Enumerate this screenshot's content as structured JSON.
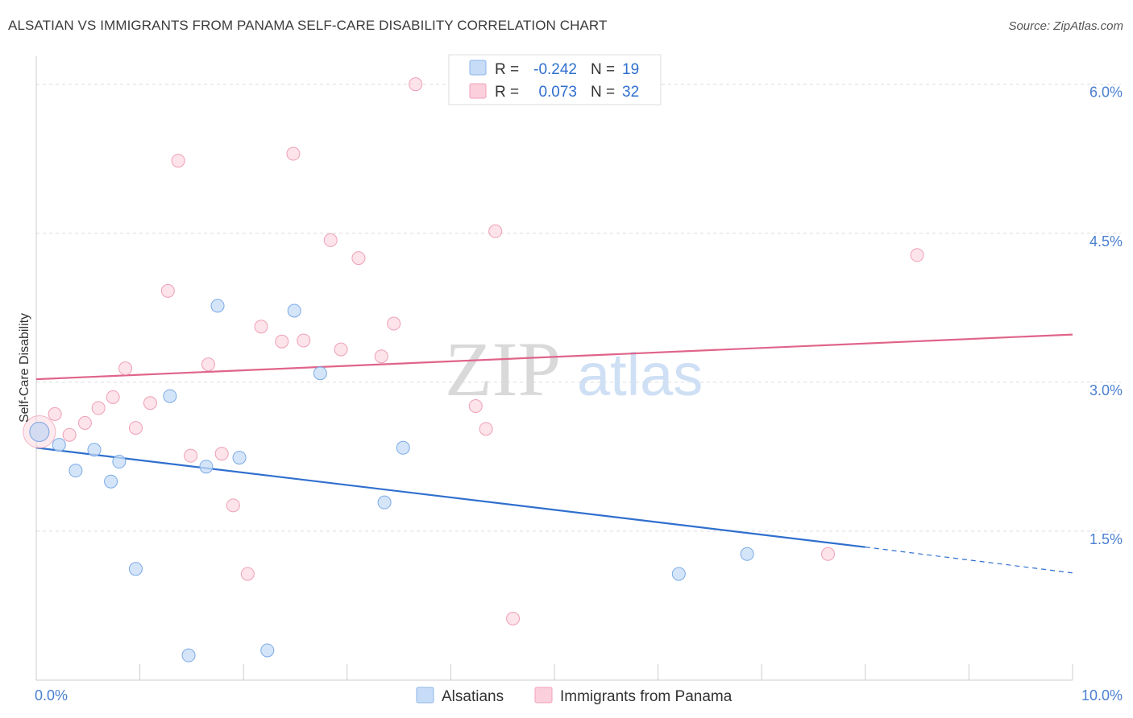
{
  "header": {
    "title": "ALSATIAN VS IMMIGRANTS FROM PANAMA SELF-CARE DISABILITY CORRELATION CHART",
    "source": "Source: ZipAtlas.com"
  },
  "watermark": {
    "zip": "ZIP",
    "atlas": "atlas"
  },
  "legend": {
    "rows": [
      {
        "r_label": "R =",
        "r_value": "-0.242",
        "n_label": "N =",
        "n_value": "19"
      },
      {
        "r_label": "R =",
        "r_value": "0.073",
        "n_label": "N =",
        "n_value": "32"
      }
    ]
  },
  "chart_data": {
    "type": "scatter",
    "title": "ALSATIAN VS IMMIGRANTS FROM PANAMA SELF-CARE DISABILITY CORRELATION CHART",
    "xlabel": "",
    "ylabel": "Self-Care Disability",
    "xlim": [
      0,
      10
    ],
    "ylim": [
      0,
      6.2
    ],
    "x_tick_labels": [
      "0.0%",
      "10.0%"
    ],
    "y_ticks": [
      1.5,
      3.0,
      4.5,
      6.0
    ],
    "y_tick_labels": [
      "1.5%",
      "3.0%",
      "4.5%",
      "6.0%"
    ],
    "grid": true,
    "colors": {
      "alsatians": "#6fa3e6",
      "panama": "#f090aa",
      "blue_line": "#2f6fce",
      "pink_line": "#e0648a"
    },
    "series": [
      {
        "name": "Alsatians",
        "r": -0.242,
        "n": 19,
        "points": [
          [
            0.03,
            2.5
          ],
          [
            0.22,
            2.37
          ],
          [
            0.38,
            2.11
          ],
          [
            0.56,
            2.32
          ],
          [
            0.72,
            2.0
          ],
          [
            0.8,
            2.2
          ],
          [
            0.96,
            1.12
          ],
          [
            1.29,
            2.86
          ],
          [
            1.47,
            0.25
          ],
          [
            1.64,
            2.15
          ],
          [
            1.75,
            3.77
          ],
          [
            1.96,
            2.24
          ],
          [
            2.23,
            0.3
          ],
          [
            2.49,
            3.72
          ],
          [
            2.74,
            3.09
          ],
          [
            3.36,
            1.79
          ],
          [
            3.54,
            2.34
          ],
          [
            6.2,
            1.07
          ],
          [
            6.86,
            1.27
          ]
        ],
        "trend": {
          "x0": 0.0,
          "y0": 2.34,
          "x1": 8.0,
          "y1": 1.34,
          "dash_to_x": 10.0,
          "dash_to_y": 1.08
        }
      },
      {
        "name": "Immigrants from Panama",
        "r": 0.073,
        "n": 32,
        "points": [
          [
            0.03,
            2.5
          ],
          [
            0.18,
            2.68
          ],
          [
            0.32,
            2.47
          ],
          [
            0.47,
            2.59
          ],
          [
            0.6,
            2.74
          ],
          [
            0.74,
            2.85
          ],
          [
            0.86,
            3.14
          ],
          [
            0.96,
            2.54
          ],
          [
            1.1,
            2.79
          ],
          [
            1.27,
            3.92
          ],
          [
            1.37,
            5.23
          ],
          [
            1.49,
            2.26
          ],
          [
            1.66,
            3.18
          ],
          [
            1.79,
            2.28
          ],
          [
            1.9,
            1.76
          ],
          [
            2.04,
            1.07
          ],
          [
            2.17,
            3.56
          ],
          [
            2.37,
            3.41
          ],
          [
            2.48,
            5.3
          ],
          [
            2.58,
            3.42
          ],
          [
            2.84,
            4.43
          ],
          [
            2.94,
            3.33
          ],
          [
            3.11,
            4.25
          ],
          [
            3.33,
            3.26
          ],
          [
            3.45,
            3.59
          ],
          [
            3.66,
            6.0
          ],
          [
            4.24,
            2.76
          ],
          [
            4.34,
            2.53
          ],
          [
            4.43,
            4.52
          ],
          [
            4.6,
            0.62
          ],
          [
            7.64,
            1.27
          ],
          [
            8.5,
            4.28
          ]
        ],
        "trend": {
          "x0": 0.0,
          "y0": 3.03,
          "x1": 10.0,
          "y1": 3.48
        }
      }
    ]
  },
  "bottom_legend": {
    "items": [
      {
        "label": "Alsatians"
      },
      {
        "label": "Immigrants from Panama"
      }
    ]
  }
}
